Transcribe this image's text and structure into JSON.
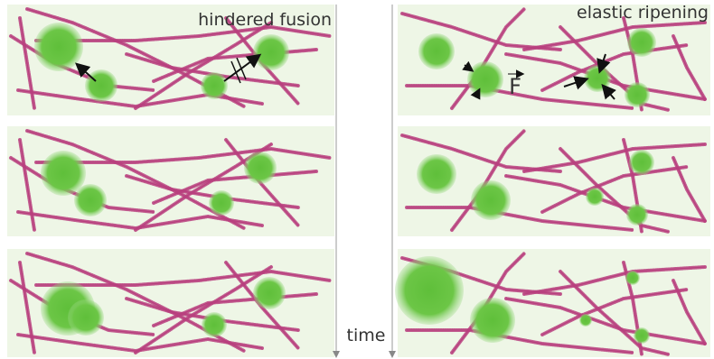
{
  "left_title": "hindered fusion",
  "right_title": "elastic ripening",
  "force_label": "F",
  "time_label": "time"
}
